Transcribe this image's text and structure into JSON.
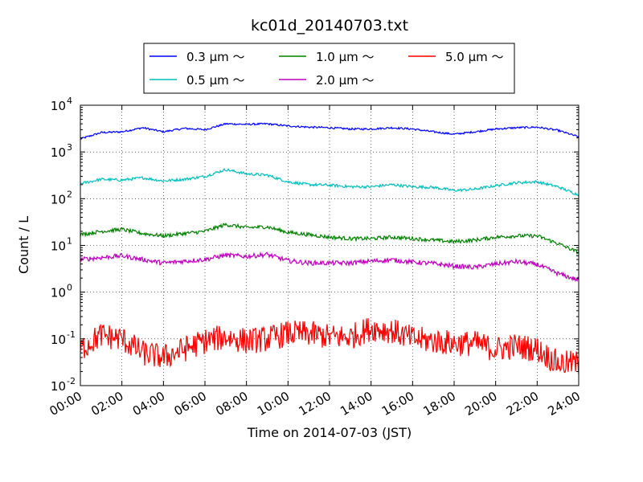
{
  "chart_data": {
    "type": "line",
    "title": "kc01d_20140703.txt",
    "xlabel": "Time on 2014-07-03 (JST)",
    "ylabel": "Count / L",
    "x_unit": "hour",
    "xlim": [
      0,
      24
    ],
    "ylim": [
      0.01,
      10000
    ],
    "yscale": "log",
    "grid": true,
    "legend_position": "top-center",
    "x_ticks": [
      "00:00",
      "02:00",
      "04:00",
      "06:00",
      "08:00",
      "10:00",
      "12:00",
      "14:00",
      "16:00",
      "18:00",
      "20:00",
      "22:00",
      "24:00"
    ],
    "y_ticks": [
      {
        "mantissa": "10",
        "exp": "-2",
        "value": 0.01
      },
      {
        "mantissa": "10",
        "exp": "-1",
        "value": 0.1
      },
      {
        "mantissa": "10",
        "exp": "0",
        "value": 1
      },
      {
        "mantissa": "10",
        "exp": "1",
        "value": 10
      },
      {
        "mantissa": "10",
        "exp": "2",
        "value": 100
      },
      {
        "mantissa": "10",
        "exp": "3",
        "value": 1000
      },
      {
        "mantissa": "10",
        "exp": "4",
        "value": 10000
      }
    ],
    "x": [
      0,
      1,
      2,
      3,
      4,
      5,
      6,
      7,
      8,
      9,
      10,
      11,
      12,
      13,
      14,
      15,
      16,
      17,
      18,
      19,
      20,
      21,
      22,
      23,
      24
    ],
    "series": [
      {
        "name": "0.3 μm ～",
        "color": "#0000ff",
        "noise": 0.02,
        "values": [
          1900,
          2600,
          2700,
          3300,
          2700,
          3200,
          3000,
          4000,
          3900,
          4000,
          3600,
          3400,
          3300,
          3100,
          3100,
          3300,
          3100,
          2700,
          2400,
          2700,
          3100,
          3300,
          3400,
          2900,
          2100
        ]
      },
      {
        "name": "0.5 μm ～",
        "color": "#00bfbf",
        "noise": 0.03,
        "values": [
          210,
          260,
          250,
          280,
          240,
          260,
          300,
          420,
          340,
          320,
          230,
          200,
          195,
          180,
          180,
          200,
          180,
          175,
          150,
          160,
          190,
          220,
          230,
          180,
          120
        ]
      },
      {
        "name": "1.0 μm ～",
        "color": "#008000",
        "noise": 0.04,
        "values": [
          17,
          20,
          22,
          18,
          16,
          18,
          20,
          28,
          24,
          25,
          19,
          17,
          15,
          14,
          14,
          15,
          14,
          13,
          12,
          13,
          15,
          16,
          16,
          11,
          7
        ]
      },
      {
        "name": "2.0 μm ～",
        "color": "#bf00bf",
        "noise": 0.05,
        "values": [
          5,
          5.5,
          6,
          5,
          4.2,
          4.6,
          5,
          6.2,
          5.8,
          6.4,
          4.7,
          4.2,
          4.2,
          4.2,
          4.6,
          4.9,
          4.4,
          4.1,
          3.6,
          3.4,
          4,
          4.5,
          3.9,
          2.5,
          1.8
        ]
      },
      {
        "name": "5.0 μm ～",
        "color": "#ff0000",
        "noise": 0.28,
        "values": [
          0.06,
          0.12,
          0.1,
          0.05,
          0.04,
          0.06,
          0.09,
          0.11,
          0.09,
          0.1,
          0.13,
          0.13,
          0.11,
          0.11,
          0.17,
          0.15,
          0.1,
          0.09,
          0.08,
          0.08,
          0.06,
          0.07,
          0.06,
          0.03,
          0.03
        ]
      }
    ]
  }
}
